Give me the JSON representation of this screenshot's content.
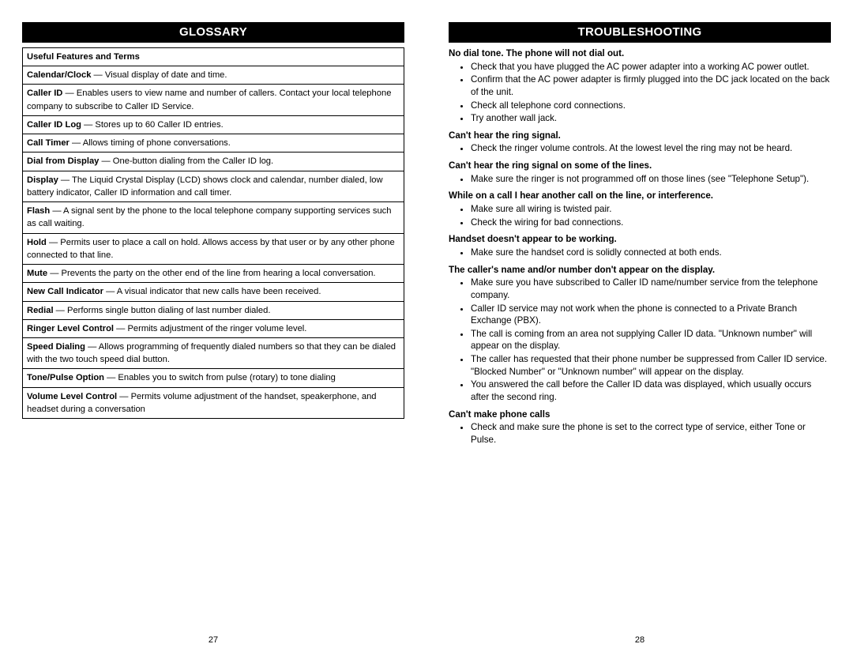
{
  "left": {
    "header": "GLOSSARY",
    "tableHeader": "Useful Features and Terms",
    "rows": [
      {
        "term": "Calendar/Clock",
        "def": "Visual display of date and time."
      },
      {
        "term": "Caller ID",
        "def": "Enables users to view name and number of callers. Contact your local telephone company to subscribe to Caller ID Service."
      },
      {
        "term": "Caller ID Log",
        "def": "Stores up to 60 Caller ID entries."
      },
      {
        "term": "Call Timer",
        "def": "Allows timing of phone conversations."
      },
      {
        "term": "Dial from Display",
        "def": "One-button dialing from the Caller ID log."
      },
      {
        "term": "Display",
        "def": "The Liquid Crystal Display (LCD) shows clock and calendar, number dialed, low battery indicator, Caller ID information and call timer."
      },
      {
        "term": "Flash",
        "def": "A signal sent by the phone to the local telephone company supporting services such as call waiting."
      },
      {
        "term": "Hold",
        "def": "Permits user to place a call on hold. Allows access by that user or by any other phone connected to that line."
      },
      {
        "term": "Mute",
        "def": "Prevents the party on the other end of the line from hearing a local conversation."
      },
      {
        "term": "New Call Indicator",
        "def": "A visual indicator that new calls have been received."
      },
      {
        "term": "Redial",
        "def": "Performs single button dialing of last number dialed."
      },
      {
        "term": "Ringer Level Control",
        "def": "Permits adjustment of the ringer volume level."
      },
      {
        "term": "Speed Dialing",
        "def": "Allows programming of frequently dialed numbers so that they can be dialed with the two touch speed dial button."
      },
      {
        "term": "Tone/Pulse Option",
        "def": "Enables you to switch from pulse (rotary) to tone dialing"
      },
      {
        "term": "Volume Level Control",
        "def": "Permits volume adjustment of the handset, speakerphone, and headset during a conversation"
      }
    ],
    "pageNum": "27"
  },
  "right": {
    "header": "TROUBLESHOOTING",
    "sections": [
      {
        "heading": "No dial tone. The phone will not dial out.",
        "items": [
          "Check that you have plugged the AC power adapter into a working AC power outlet.",
          "Confirm that the AC power adapter is firmly plugged into the DC jack located on the back of the unit.",
          "Check all telephone cord connections.",
          "Try another wall jack."
        ]
      },
      {
        "heading": "Can't hear the ring signal.",
        "items": [
          "Check the ringer volume controls. At the lowest level the ring may not be heard."
        ]
      },
      {
        "heading": "Can't hear the ring signal on some of the lines.",
        "items": [
          "Make sure the ringer is not programmed off on those lines (see \"Telephone Setup\")."
        ]
      },
      {
        "heading": "While on a call I hear another call on the line, or interference.",
        "items": [
          "Make sure all wiring is twisted pair.",
          "Check the wiring for bad connections."
        ]
      },
      {
        "heading": "Handset doesn't appear to be working.",
        "items": [
          "Make sure the handset cord is solidly connected at both ends."
        ]
      },
      {
        "heading": "The caller's name and/or number don't appear on the display.",
        "items": [
          "Make sure you have subscribed to Caller ID name/number service from the telephone company.",
          "Caller ID service may not work when the phone is connected to a Private Branch Exchange (PBX).",
          "The call is coming from an area not supplying Caller ID data. \"Unknown number\" will appear on the display.",
          "The caller has requested that their phone number be suppressed from Caller ID service. \"Blocked Number\" or \"Unknown number\" will appear on the display.",
          "You answered the call before the Caller ID data was displayed, which usually occurs after the second ring."
        ]
      },
      {
        "heading": "Can't make phone calls",
        "items": [
          "Check and make sure the phone is set to the correct type of service, either Tone or Pulse."
        ]
      }
    ],
    "pageNum": "28"
  }
}
